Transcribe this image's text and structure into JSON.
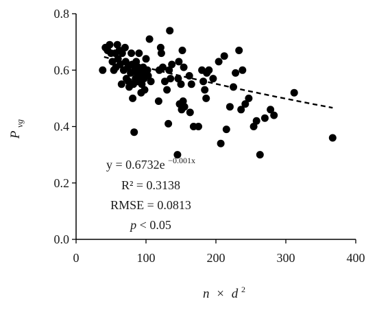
{
  "chart_data": {
    "type": "scatter",
    "xlabel": {
      "base": "n",
      "times": "×",
      "var": "d",
      "exponent": "2"
    },
    "ylabel": {
      "base": "P",
      "subscript": "vg"
    },
    "xlim": [
      0,
      400
    ],
    "ylim": [
      0,
      0.8
    ],
    "x_ticks": [
      "0",
      "100",
      "200",
      "300",
      "400"
    ],
    "y_ticks": [
      "0.0",
      "0.2",
      "0.4",
      "0.6",
      "0.8"
    ],
    "grid": false,
    "marker_color": "#000000",
    "trendline": {
      "type": "exponential",
      "a": 0.6732,
      "b": -0.001,
      "x_range": [
        40,
        367
      ],
      "style": "dashed"
    },
    "annotations": {
      "equation": {
        "prefix": "y = 0.6732e",
        "exponent": "−0.001x"
      },
      "r2": "R² = 0.3138",
      "rmse": "RMSE = 0.0813",
      "p": {
        "symbol": "p",
        "rest": " < 0.05"
      }
    },
    "points": [
      [
        38,
        0.6
      ],
      [
        42,
        0.68
      ],
      [
        45,
        0.67
      ],
      [
        48,
        0.69
      ],
      [
        50,
        0.66
      ],
      [
        52,
        0.63
      ],
      [
        54,
        0.6
      ],
      [
        56,
        0.66
      ],
      [
        57,
        0.61
      ],
      [
        59,
        0.69
      ],
      [
        60,
        0.64
      ],
      [
        62,
        0.67
      ],
      [
        63,
        0.62
      ],
      [
        65,
        0.55
      ],
      [
        66,
        0.66
      ],
      [
        68,
        0.6
      ],
      [
        70,
        0.68
      ],
      [
        71,
        0.63
      ],
      [
        72,
        0.57
      ],
      [
        74,
        0.61
      ],
      [
        75,
        0.56
      ],
      [
        76,
        0.54
      ],
      [
        78,
        0.59
      ],
      [
        79,
        0.66
      ],
      [
        80,
        0.62
      ],
      [
        81,
        0.5
      ],
      [
        82,
        0.55
      ],
      [
        83,
        0.38
      ],
      [
        84,
        0.6
      ],
      [
        85,
        0.57
      ],
      [
        86,
        0.63
      ],
      [
        87,
        0.59
      ],
      [
        88,
        0.56
      ],
      [
        89,
        0.61
      ],
      [
        90,
        0.66
      ],
      [
        91,
        0.58
      ],
      [
        92,
        0.6
      ],
      [
        93,
        0.52
      ],
      [
        94,
        0.55
      ],
      [
        95,
        0.59
      ],
      [
        96,
        0.61
      ],
      [
        97,
        0.57
      ],
      [
        98,
        0.53
      ],
      [
        100,
        0.64
      ],
      [
        102,
        0.6
      ],
      [
        103,
        0.58
      ],
      [
        105,
        0.71
      ],
      [
        107,
        0.56
      ],
      [
        118,
        0.49
      ],
      [
        119,
        0.6
      ],
      [
        121,
        0.68
      ],
      [
        122,
        0.66
      ],
      [
        124,
        0.61
      ],
      [
        127,
        0.56
      ],
      [
        130,
        0.53
      ],
      [
        132,
        0.41
      ],
      [
        133,
        0.6
      ],
      [
        134,
        0.74
      ],
      [
        135,
        0.57
      ],
      [
        137,
        0.62
      ],
      [
        145,
        0.3
      ],
      [
        146,
        0.57
      ],
      [
        147,
        0.63
      ],
      [
        148,
        0.48
      ],
      [
        150,
        0.55
      ],
      [
        151,
        0.46
      ],
      [
        152,
        0.67
      ],
      [
        153,
        0.49
      ],
      [
        154,
        0.61
      ],
      [
        155,
        0.47
      ],
      [
        162,
        0.58
      ],
      [
        163,
        0.45
      ],
      [
        165,
        0.55
      ],
      [
        168,
        0.4
      ],
      [
        175,
        0.4
      ],
      [
        180,
        0.6
      ],
      [
        182,
        0.56
      ],
      [
        184,
        0.53
      ],
      [
        186,
        0.5
      ],
      [
        187,
        0.59
      ],
      [
        190,
        0.6
      ],
      [
        196,
        0.57
      ],
      [
        204,
        0.63
      ],
      [
        207,
        0.34
      ],
      [
        212,
        0.65
      ],
      [
        215,
        0.39
      ],
      [
        220,
        0.47
      ],
      [
        225,
        0.54
      ],
      [
        228,
        0.59
      ],
      [
        233,
        0.67
      ],
      [
        236,
        0.46
      ],
      [
        238,
        0.6
      ],
      [
        242,
        0.48
      ],
      [
        247,
        0.5
      ],
      [
        254,
        0.4
      ],
      [
        258,
        0.42
      ],
      [
        263,
        0.3
      ],
      [
        270,
        0.43
      ],
      [
        278,
        0.46
      ],
      [
        283,
        0.44
      ],
      [
        312,
        0.52
      ],
      [
        367,
        0.36
      ]
    ]
  }
}
